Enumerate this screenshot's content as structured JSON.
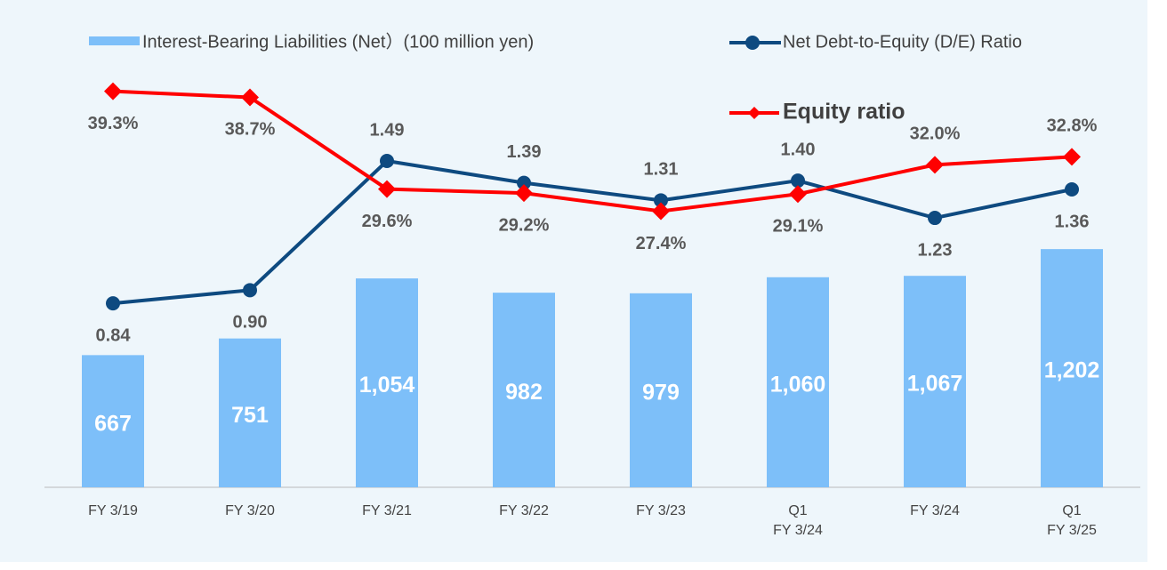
{
  "chart_data": {
    "type": "bar-line",
    "categories": [
      "FY 3/19",
      "FY 3/20",
      "FY 3/21",
      "FY 3/22",
      "FY 3/23",
      "Q1\nFY 3/24",
      "FY 3/24",
      "Q1\nFY 3/25"
    ],
    "series": [
      {
        "name": "Interest-Bearing Liabilities (Net）(100 million yen)",
        "type": "bar",
        "color": "#7dbff9",
        "values": [
          667,
          751,
          1054,
          982,
          979,
          1060,
          1067,
          1202
        ],
        "value_labels": [
          "667",
          "751",
          "1,054",
          "982",
          "979",
          "1,060",
          "1,067",
          "1,202"
        ]
      },
      {
        "name": "Net Debt-to-Equity (D/E) Ratio",
        "type": "line",
        "marker": "circle",
        "axis": "y2",
        "color": "#0e4a80",
        "values": [
          0.84,
          0.9,
          1.49,
          1.39,
          1.31,
          1.4,
          1.23,
          1.36
        ],
        "value_labels": [
          "0.84",
          "0.90",
          "1.49",
          "1.39",
          "1.31",
          "1.40",
          "1.23",
          "1.36"
        ]
      },
      {
        "name": "Equity ratio",
        "type": "line",
        "marker": "diamond",
        "axis": "y3",
        "color": "#ff0000",
        "values": [
          39.3,
          38.7,
          29.6,
          29.2,
          27.4,
          29.1,
          32.0,
          32.8
        ],
        "value_labels": [
          "39.3%",
          "38.7%",
          "29.6%",
          "29.2%",
          "27.4%",
          "29.1%",
          "32.0%",
          "32.8%"
        ]
      }
    ],
    "ylim": [
      0,
      2100
    ],
    "y2lim": [
      0,
      1.9
    ],
    "y3lim": [
      0,
      41.3
    ],
    "grid": false,
    "legend": "top"
  }
}
